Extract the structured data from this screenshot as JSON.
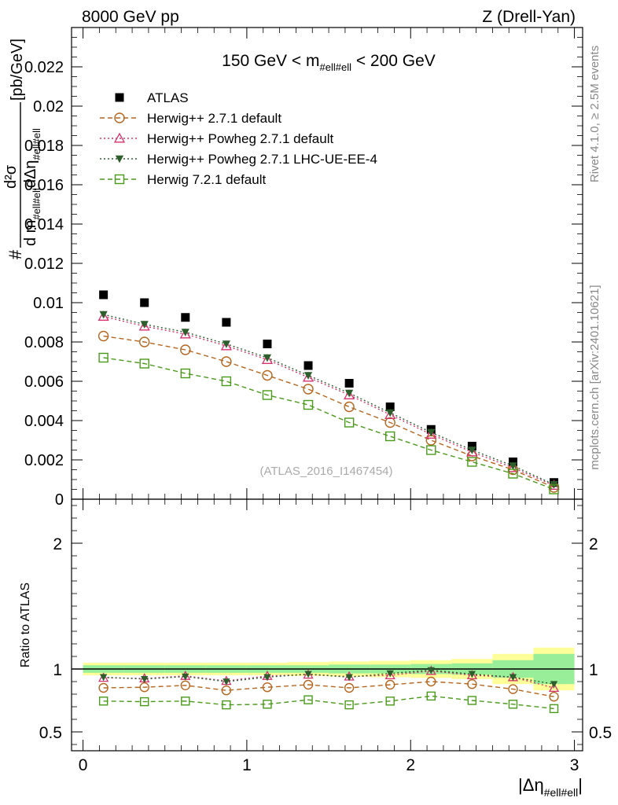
{
  "header": {
    "left": "8000 GeV pp",
    "right": "Z (Drell-Yan)"
  },
  "side_labels": {
    "rivet": "Rivet 4.1.0, ≥ 2.5M events",
    "mcplots": "mcplots.cern.ch [arXiv:2401.10621]"
  },
  "chart_data": [
    {
      "type": "scatter",
      "panel": "main",
      "title_parts": {
        "prefix": "150 GeV < m",
        "sub": "#ell#ell",
        "suffix": " < 200 GeV"
      },
      "watermark": "(ATLAS_2016_I1467454)",
      "ylabel_parts": {
        "hash": "#",
        "num": "d²σ",
        "den_a": "d m",
        "den_a_sub": "#ell#ell",
        "den_b": "dΔη",
        "den_b_sub": "#ell#ell",
        "unit": "[pb/GeV]"
      },
      "xlim": [
        -0.07,
        3.05
      ],
      "ylim": [
        0,
        0.024
      ],
      "y_ticks": [
        "0",
        "0.002",
        "0.004",
        "0.006",
        "0.008",
        "0.01",
        "0.012",
        "0.014",
        "0.016",
        "0.018",
        "0.02",
        "0.022"
      ],
      "x": [
        0.125,
        0.375,
        0.625,
        0.875,
        1.125,
        1.375,
        1.625,
        1.875,
        2.125,
        2.375,
        2.625,
        2.875
      ],
      "series": [
        {
          "name": "ATLAS",
          "color": "#000000",
          "marker": "filled-square",
          "line": "none",
          "values": [
            0.0104,
            0.01,
            0.00925,
            0.009,
            0.0079,
            0.0068,
            0.0059,
            0.0047,
            0.00355,
            0.0027,
            0.0019,
            0.00085
          ]
        },
        {
          "name": "Herwig++ 2.7.1 default",
          "color": "#b5651d",
          "marker": "open-circle",
          "line": "dashed",
          "values": [
            0.0083,
            0.008,
            0.0076,
            0.007,
            0.0063,
            0.0056,
            0.0047,
            0.0039,
            0.003,
            0.0022,
            0.0015,
            0.0006
          ]
        },
        {
          "name": "Herwig++ Powheg 2.7.1 default",
          "color": "#d6336c",
          "marker": "open-triangle",
          "line": "dotted",
          "values": [
            0.0093,
            0.0088,
            0.0084,
            0.0078,
            0.0071,
            0.0062,
            0.0053,
            0.0043,
            0.0033,
            0.0024,
            0.0016,
            0.0007
          ]
        },
        {
          "name": "Herwig++ Powheg 2.7.1 LHC-UE-EE-4",
          "color": "#2d5f2d",
          "marker": "filled-triangle-down",
          "line": "dotted",
          "values": [
            0.0094,
            0.0089,
            0.0085,
            0.0079,
            0.0072,
            0.0063,
            0.0054,
            0.0044,
            0.0034,
            0.0025,
            0.0017,
            0.00075
          ]
        },
        {
          "name": "Herwig 7.2.1 default",
          "color": "#4a9a1a",
          "marker": "open-square",
          "line": "dashed",
          "values": [
            0.0072,
            0.0069,
            0.0064,
            0.006,
            0.0053,
            0.0048,
            0.0039,
            0.0032,
            0.0025,
            0.0019,
            0.0013,
            0.0005
          ]
        }
      ]
    },
    {
      "type": "scatter",
      "panel": "ratio",
      "ylabel": "Ratio to ATLAS",
      "xlabel_parts": {
        "main": "|Δη",
        "sub": "#ell#ell",
        "close": "|"
      },
      "xlim": [
        -0.07,
        3.05
      ],
      "ylim": [
        0.35,
        2.35
      ],
      "x_ticks": [
        "0",
        "1",
        "2",
        "3"
      ],
      "y_ticks_left": [
        "0.5",
        "1",
        "2"
      ],
      "y_ticks_right": [
        "0.5",
        "1",
        "2"
      ],
      "y_tick_values": [
        0.5,
        1,
        2
      ],
      "bins": [
        0,
        0.25,
        0.5,
        0.75,
        1.0,
        1.25,
        1.5,
        1.75,
        2.0,
        2.25,
        2.5,
        2.75,
        3.0
      ],
      "band_stat_halfwidth": [
        0.03,
        0.03,
        0.03,
        0.03,
        0.03,
        0.03,
        0.035,
        0.035,
        0.04,
        0.045,
        0.07,
        0.12
      ],
      "band_total_halfwidth": [
        0.05,
        0.05,
        0.05,
        0.05,
        0.05,
        0.055,
        0.06,
        0.065,
        0.07,
        0.08,
        0.12,
        0.17
      ],
      "band_colors": {
        "total": "#ffff99",
        "stat": "#99ee99"
      },
      "x": [
        0.125,
        0.375,
        0.625,
        0.875,
        1.125,
        1.375,
        1.625,
        1.875,
        2.125,
        2.375,
        2.625,
        2.875
      ],
      "series": [
        {
          "name": "Herwig++ 2.7.1 default",
          "color": "#b5651d",
          "marker": "open-circle",
          "line": "dashed",
          "values": [
            0.85,
            0.855,
            0.87,
            0.83,
            0.855,
            0.875,
            0.85,
            0.875,
            0.9,
            0.88,
            0.84,
            0.78
          ]
        },
        {
          "name": "Herwig++ Powheg 2.7.1 default",
          "color": "#d6336c",
          "marker": "open-triangle",
          "line": "dotted",
          "values": [
            0.93,
            0.925,
            0.945,
            0.905,
            0.945,
            0.955,
            0.94,
            0.95,
            0.985,
            0.95,
            0.935,
            0.85
          ]
        },
        {
          "name": "Herwig++ Powheg 2.7.1 LHC-UE-EE-4",
          "color": "#2d5f2d",
          "marker": "filled-triangle-down",
          "line": "dotted",
          "values": [
            0.935,
            0.92,
            0.94,
            0.9,
            0.935,
            0.96,
            0.935,
            0.965,
            0.99,
            0.96,
            0.935,
            0.88
          ]
        },
        {
          "name": "Herwig 7.2.1 default",
          "color": "#4a9a1a",
          "marker": "open-square",
          "line": "dashed",
          "values": [
            0.745,
            0.74,
            0.745,
            0.715,
            0.72,
            0.755,
            0.715,
            0.745,
            0.785,
            0.75,
            0.72,
            0.685
          ]
        }
      ]
    }
  ]
}
